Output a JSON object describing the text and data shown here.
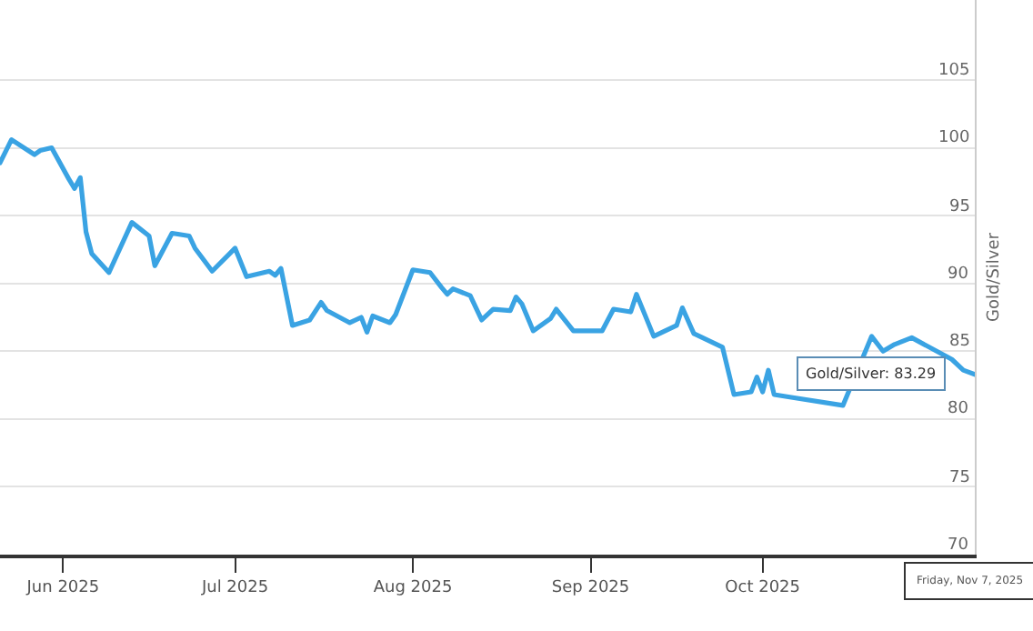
{
  "chart_data": {
    "type": "line",
    "ylabel": "Gold/Silver",
    "x": [
      "2025-05-21",
      "2025-05-23",
      "2025-05-27",
      "2025-05-28",
      "2025-05-30",
      "2025-06-02",
      "2025-06-03",
      "2025-06-04",
      "2025-06-05",
      "2025-06-06",
      "2025-06-09",
      "2025-06-13",
      "2025-06-16",
      "2025-06-17",
      "2025-06-20",
      "2025-06-23",
      "2025-06-24",
      "2025-06-27",
      "2025-07-01",
      "2025-07-03",
      "2025-07-07",
      "2025-07-08",
      "2025-07-09",
      "2025-07-11",
      "2025-07-14",
      "2025-07-16",
      "2025-07-17",
      "2025-07-21",
      "2025-07-23",
      "2025-07-24",
      "2025-07-25",
      "2025-07-28",
      "2025-07-29",
      "2025-08-01",
      "2025-08-04",
      "2025-08-06",
      "2025-08-07",
      "2025-08-08",
      "2025-08-11",
      "2025-08-13",
      "2025-08-15",
      "2025-08-18",
      "2025-08-19",
      "2025-08-20",
      "2025-08-22",
      "2025-08-25",
      "2025-08-26",
      "2025-08-29",
      "2025-09-03",
      "2025-09-05",
      "2025-09-08",
      "2025-09-09",
      "2025-09-12",
      "2025-09-16",
      "2025-09-17",
      "2025-09-19",
      "2025-09-23",
      "2025-09-24",
      "2025-09-26",
      "2025-09-29",
      "2025-09-30",
      "2025-10-01",
      "2025-10-02",
      "2025-10-03",
      "2025-10-06",
      "2025-10-10",
      "2025-10-15",
      "2025-10-17",
      "2025-10-20",
      "2025-10-22",
      "2025-10-24",
      "2025-10-27",
      "2025-10-30",
      "2025-11-03",
      "2025-11-05",
      "2025-11-07"
    ],
    "series": [
      {
        "color": "#3aa3e3",
        "values": [
          98.9,
          100.6,
          99.5,
          99.8,
          100.0,
          97.7,
          97.0,
          97.8,
          93.8,
          92.2,
          90.8,
          94.5,
          93.5,
          91.3,
          93.7,
          93.5,
          92.6,
          90.9,
          92.6,
          90.5,
          90.9,
          90.6,
          91.1,
          86.9,
          87.3,
          88.6,
          88.0,
          87.1,
          87.5,
          86.4,
          87.6,
          87.1,
          87.7,
          91.0,
          90.8,
          89.7,
          89.2,
          89.6,
          89.1,
          87.3,
          88.1,
          88.0,
          89.0,
          88.5,
          86.5,
          87.4,
          88.1,
          86.5,
          86.5,
          88.1,
          87.9,
          89.2,
          86.1,
          86.9,
          88.2,
          86.3,
          85.5,
          85.3,
          81.8,
          82.0,
          83.1,
          82.0,
          83.6,
          81.8,
          81.6,
          null,
          81.0,
          null,
          86.1,
          85.0,
          85.5,
          86.0,
          null,
          84.4,
          83.6,
          83.29
        ]
      }
    ],
    "xlim": [
      "2025-05-21",
      "2025-11-07"
    ],
    "xticks": [
      {
        "value": "2025-06-01",
        "label": "Jun 2025"
      },
      {
        "value": "2025-07-01",
        "label": "Jul 2025"
      },
      {
        "value": "2025-08-01",
        "label": "Aug 2025"
      },
      {
        "value": "2025-09-01",
        "label": "Sep 2025"
      },
      {
        "value": "2025-10-01",
        "label": "Oct 2025"
      }
    ],
    "ylim": [
      70,
      110.9
    ],
    "yticks": [
      70,
      75,
      80,
      85,
      90,
      95,
      100,
      105
    ],
    "grid": "y",
    "legend": false,
    "marker": "none",
    "line_style": "solid",
    "annotations": [
      {
        "text": "Gold/Silver: 83.29",
        "x": "2025-11-07",
        "y": 83.29
      },
      "Friday, Nov 7, 2025"
    ]
  }
}
